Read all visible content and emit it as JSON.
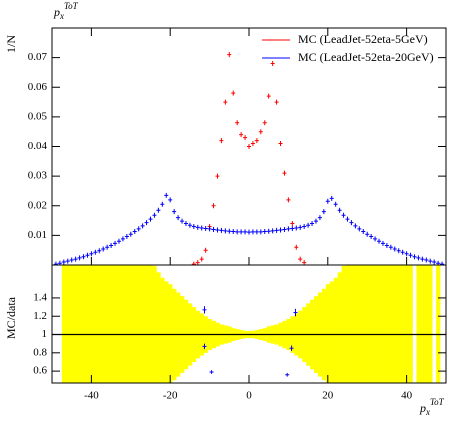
{
  "chart_data": [
    {
      "type": "scatter",
      "title": "p",
      "title_sub": "x",
      "title_sup": "ToT",
      "ylabel": "1/N",
      "x": [
        -49,
        -48,
        -47,
        -46,
        -45,
        -44,
        -43,
        -42,
        -41,
        -40,
        -39,
        -38,
        -37,
        -36,
        -35,
        -34,
        -33,
        -32,
        -31,
        -30,
        -29,
        -28,
        -27,
        -26,
        -25,
        -24,
        -23,
        -22,
        -21,
        -20,
        -19,
        -18,
        -17,
        -16,
        -15,
        -14,
        -13,
        -12,
        -11,
        -10,
        -9,
        -8,
        -7,
        -6,
        -5,
        -4,
        -3,
        -2,
        -1,
        0,
        1,
        2,
        3,
        4,
        5,
        6,
        7,
        8,
        9,
        10,
        11,
        12,
        13,
        14,
        15,
        16,
        17,
        18,
        19,
        20,
        21,
        22,
        23,
        24,
        25,
        26,
        27,
        28,
        29,
        30,
        31,
        32,
        33,
        34,
        35,
        36,
        37,
        38,
        39,
        40,
        41,
        42,
        43,
        44,
        45,
        46,
        47,
        48,
        49
      ],
      "xlim": [
        -50,
        50
      ],
      "ylim": [
        0,
        0.08
      ],
      "yticks": [
        0.01,
        0.02,
        0.03,
        0.04,
        0.05,
        0.06,
        0.07
      ],
      "legend": "upper right",
      "series": [
        {
          "name": "MC (LeadJet-52eta-5GeV)",
          "color": "#ff0000",
          "values": [
            null,
            null,
            null,
            null,
            null,
            null,
            null,
            null,
            null,
            null,
            null,
            null,
            null,
            null,
            null,
            null,
            null,
            null,
            null,
            null,
            null,
            null,
            null,
            null,
            null,
            null,
            null,
            null,
            null,
            null,
            null,
            null,
            null,
            null,
            null,
            0.0003,
            0.0008,
            0.002,
            0.005,
            0.013,
            0.02,
            0.03,
            0.042,
            0.055,
            0.071,
            0.058,
            0.048,
            0.044,
            0.043,
            0.04,
            0.041,
            0.042,
            0.045,
            0.048,
            0.057,
            0.068,
            0.055,
            0.041,
            0.031,
            0.022,
            0.014,
            0.006,
            0.002,
            0.0008,
            null,
            null,
            null,
            null,
            null,
            null,
            null,
            null,
            null,
            null,
            null,
            null,
            null,
            null,
            null,
            null,
            null,
            null,
            null,
            null,
            null,
            null,
            null,
            null,
            null,
            null,
            null,
            null,
            null,
            null,
            null
          ]
        },
        {
          "name": "MC (LeadJet-52eta-20GeV)",
          "color": "#0000ff",
          "values": [
            0.0003,
            0.0006,
            0.001,
            0.0013,
            0.0017,
            0.002,
            0.0024,
            0.0028,
            0.0033,
            0.0038,
            0.0043,
            0.0048,
            0.0054,
            0.006,
            0.0066,
            0.0073,
            0.008,
            0.0088,
            0.0096,
            0.0104,
            0.0113,
            0.0122,
            0.0132,
            0.0143,
            0.0155,
            0.0168,
            0.0185,
            0.0205,
            0.0235,
            0.022,
            0.018,
            0.016,
            0.0148,
            0.014,
            0.0134,
            0.013,
            0.0127,
            0.0125,
            0.0123,
            0.0122,
            0.012,
            0.0118,
            0.0117,
            0.0115,
            0.0114,
            0.0113,
            0.0112,
            0.0112,
            0.0112,
            0.0111,
            0.0112,
            0.0112,
            0.0112,
            0.0113,
            0.0114,
            0.0115,
            0.0117,
            0.0118,
            0.012,
            0.0122,
            0.0123,
            0.0125,
            0.0127,
            0.013,
            0.0134,
            0.014,
            0.0148,
            0.016,
            0.018,
            0.0215,
            0.0225,
            0.0205,
            0.0185,
            0.0168,
            0.0155,
            0.0143,
            0.0132,
            0.0122,
            0.0113,
            0.0104,
            0.0096,
            0.0088,
            0.008,
            0.0073,
            0.0066,
            0.006,
            0.0054,
            0.0048,
            0.0043,
            0.0038,
            0.0033,
            0.0028,
            0.0024,
            0.002,
            0.0017,
            0.0013,
            0.001,
            0.0006,
            0.0003
          ]
        }
      ]
    },
    {
      "type": "ratio",
      "ylabel": "MC/data",
      "xlabel": "p",
      "xlabel_sub": "x",
      "xlabel_sup": "ToT",
      "xlim": [
        -50,
        50
      ],
      "xticks": [
        -40,
        -20,
        0,
        20,
        40
      ],
      "ylim": [
        0.47,
        1.76
      ],
      "yticks": [
        0.6,
        0.8,
        1,
        1.2,
        1.4
      ],
      "reference": 1,
      "band_color": "#ffff00",
      "x": [
        -49,
        -48,
        -47,
        -46,
        -45,
        -44,
        -43,
        -42,
        -41,
        -40,
        -39,
        -38,
        -37,
        -36,
        -35,
        -34,
        -33,
        -32,
        -31,
        -30,
        -29,
        -28,
        -27,
        -26,
        -25,
        -24,
        -23,
        -22,
        -21,
        -20,
        -19,
        -18,
        -17,
        -16,
        -15,
        -14,
        -13,
        -12,
        -11,
        -10,
        -9,
        -8,
        -7,
        -6,
        -5,
        -4,
        -3,
        -2,
        -1,
        0,
        1,
        2,
        3,
        4,
        5,
        6,
        7,
        8,
        9,
        10,
        11,
        12,
        13,
        14,
        15,
        16,
        17,
        18,
        19,
        20,
        21,
        22,
        23,
        24,
        25,
        26,
        27,
        28,
        29,
        30,
        31,
        32,
        33,
        34,
        35,
        36,
        37,
        38,
        39,
        40,
        41,
        42,
        43,
        44,
        45,
        46,
        47,
        48,
        49
      ],
      "band": [
        null,
        null,
        0.8,
        0.8,
        0.8,
        0.8,
        0.8,
        0.8,
        0.8,
        0.8,
        0.8,
        0.8,
        0.8,
        0.8,
        0.8,
        0.8,
        0.8,
        0.8,
        0.8,
        0.8,
        0.8,
        0.8,
        0.8,
        0.8,
        0.8,
        0.75,
        0.68,
        0.62,
        0.58,
        0.55,
        0.5,
        0.46,
        0.42,
        0.38,
        0.34,
        0.3,
        0.26,
        0.23,
        0.2,
        0.17,
        0.15,
        0.13,
        0.11,
        0.1,
        0.09,
        0.07,
        0.06,
        0.05,
        0.04,
        0.04,
        0.04,
        0.05,
        0.06,
        0.07,
        0.09,
        0.1,
        0.11,
        0.13,
        0.15,
        0.17,
        0.2,
        0.23,
        0.26,
        0.3,
        0.34,
        0.38,
        0.42,
        0.46,
        0.5,
        0.55,
        0.58,
        0.62,
        0.68,
        0.75,
        0.8,
        0.8,
        0.8,
        0.8,
        0.8,
        0.8,
        0.8,
        0.8,
        0.8,
        0.8,
        0.8,
        0.8,
        0.8,
        0.8,
        0.8,
        0.8,
        0.8,
        null,
        0.8,
        0.8,
        0.8,
        0.8,
        null,
        0.8,
        null
      ],
      "series": [
        {
          "color": "#0000ff",
          "x": [
            -11.3,
            -11.3,
            -9.5,
            11.8,
            10.8,
            9.7
          ],
          "values": [
            1.27,
            0.87,
            0.59,
            1.24,
            0.85,
            0.56
          ],
          "errors": [
            0.04,
            0.03,
            0.02,
            0.04,
            0.03,
            0.02
          ]
        }
      ]
    }
  ]
}
